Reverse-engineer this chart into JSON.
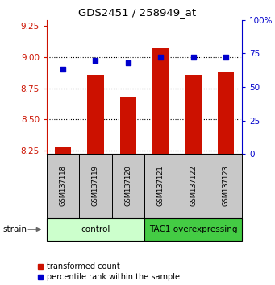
{
  "title": "GDS2451 / 258949_at",
  "samples": [
    "GSM137118",
    "GSM137119",
    "GSM137120",
    "GSM137121",
    "GSM137122",
    "GSM137123"
  ],
  "transformed_counts": [
    8.28,
    8.86,
    8.68,
    9.07,
    8.86,
    8.88
  ],
  "percentile_ranks": [
    63,
    70,
    68,
    72,
    72,
    72
  ],
  "bar_bottom": 8.22,
  "ylim_left": [
    8.22,
    9.3
  ],
  "yticks_left": [
    8.25,
    8.5,
    8.75,
    9.0,
    9.25
  ],
  "ylim_right": [
    0,
    100
  ],
  "yticks_right": [
    0,
    25,
    50,
    75,
    100
  ],
  "yticklabels_right": [
    "0",
    "25",
    "50",
    "75",
    "100%"
  ],
  "bar_color": "#cc1100",
  "dot_color": "#0000cc",
  "control_label": "control",
  "tac1_label": "TAC1 overexpressing",
  "control_bg": "#ccffcc",
  "tac1_bg": "#44cc44",
  "strain_label": "strain",
  "left_axis_color": "#cc1100",
  "right_axis_color": "#0000cc",
  "legend_red_label": "transformed count",
  "legend_blue_label": "percentile rank within the sample",
  "n_control": 3,
  "n_tac1": 3
}
